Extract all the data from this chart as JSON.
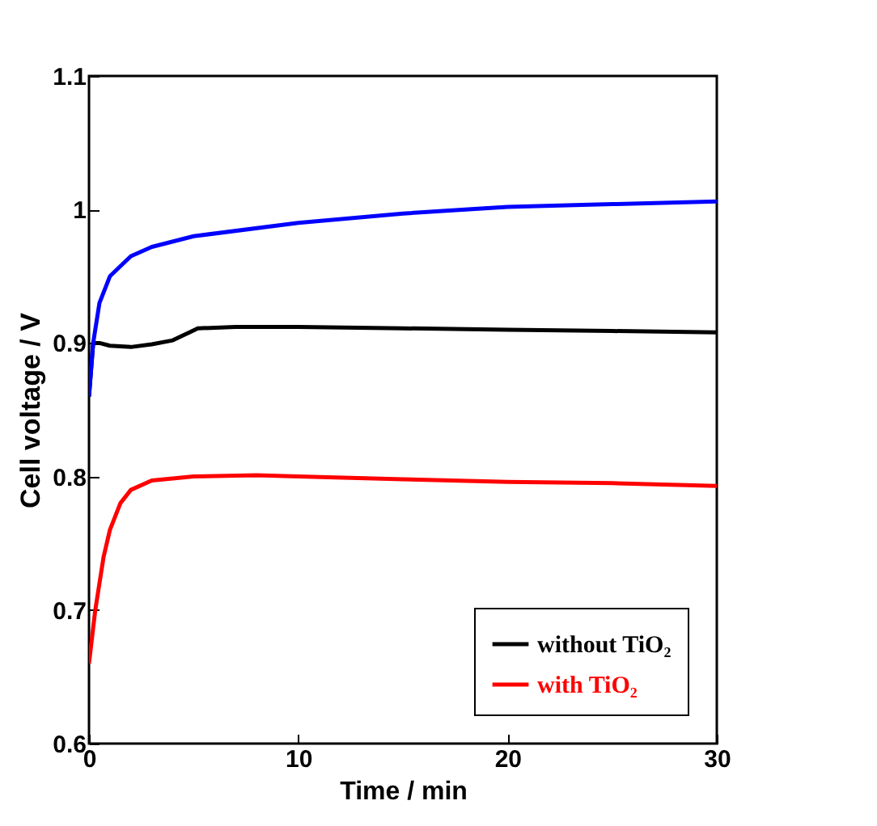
{
  "chart_data": {
    "type": "line",
    "xlabel": "Time / min",
    "ylabel": "Cell voltage / V",
    "xlim": [
      0,
      30
    ],
    "xticks": [
      0,
      10,
      20,
      30
    ],
    "ylim": [
      0.6,
      1.1
    ],
    "yticks": [
      0.6,
      0.7,
      0.8,
      0.9,
      1,
      1.1
    ],
    "grid": false,
    "legend": "bottom right",
    "series": [
      {
        "name": "without TiO₂",
        "color": "#000000",
        "x": [
          0,
          0.2,
          0.5,
          1,
          2,
          3,
          4,
          4.8,
          5.2,
          7,
          10,
          15,
          20,
          25,
          30
        ],
        "values": [
          0.86,
          0.9,
          0.9,
          0.898,
          0.897,
          0.899,
          0.902,
          0.908,
          0.911,
          0.912,
          0.912,
          0.911,
          0.91,
          0.909,
          0.908
        ]
      },
      {
        "color": "#0000ff",
        "x": [
          0,
          0.2,
          0.5,
          1,
          2,
          3,
          5,
          10,
          15,
          20,
          25,
          30
        ],
        "values": [
          0.86,
          0.9,
          0.93,
          0.95,
          0.965,
          0.972,
          0.98,
          0.99,
          0.997,
          1.002,
          1.004,
          1.006
        ]
      },
      {
        "name": "with TiO₂",
        "color": "#ff0000",
        "x": [
          0,
          0.3,
          0.7,
          1,
          1.5,
          2,
          3,
          5,
          8,
          10,
          15,
          20,
          25,
          30
        ],
        "values": [
          0.66,
          0.7,
          0.74,
          0.76,
          0.78,
          0.79,
          0.797,
          0.8,
          0.801,
          0.8,
          0.798,
          0.796,
          0.795,
          0.793
        ]
      }
    ]
  }
}
